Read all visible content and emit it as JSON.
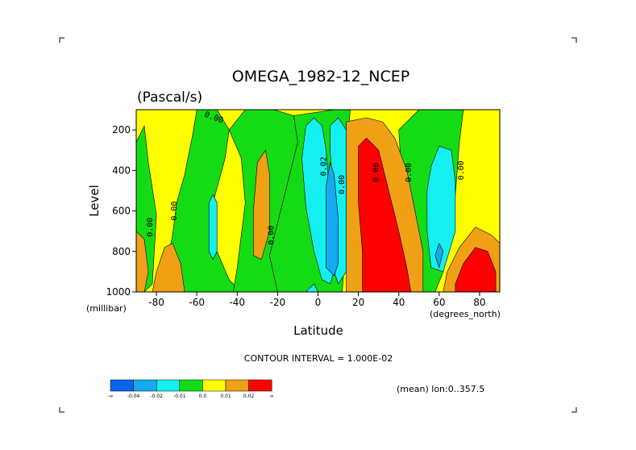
{
  "chart_data": {
    "type": "contour",
    "title": "OMEGA_1982-12_NCEP",
    "units": "(Pascal/s)",
    "xlabel": "Latitude",
    "ylabel": "Level",
    "x_unit_label": "(degrees_north)",
    "y_unit_label": "(millibar)",
    "xlim": [
      -90,
      90
    ],
    "ylim": [
      1000,
      100
    ],
    "x_ticks": [
      -80,
      -60,
      -40,
      -20,
      0,
      20,
      40,
      60,
      80
    ],
    "x_tick_labels": [
      "-80",
      "-60",
      "-40",
      "-20",
      "0",
      "20",
      "40",
      "60",
      "80"
    ],
    "y_ticks": [
      200,
      400,
      600,
      800,
      1000
    ],
    "y_tick_labels": [
      "200",
      "400",
      "600",
      "800",
      "1000"
    ],
    "contour_interval_text": "CONTOUR INTERVAL = 1.000E-02",
    "mean_text": "(mean) lon:0..357.5",
    "contour_labels": [
      {
        "text": "0.00",
        "lat": -52,
        "lev": 150,
        "rot": 20
      },
      {
        "text": "0.00",
        "lat": -82,
        "lev": 680,
        "rot": -90
      },
      {
        "text": "0.00",
        "lat": -70,
        "lev": 600,
        "rot": -90
      },
      {
        "text": "0.00",
        "lat": -22,
        "lev": 720,
        "rot": -90
      },
      {
        "text": "0.02",
        "lat": 4,
        "lev": 380,
        "rot": -90
      },
      {
        "text": "0.00",
        "lat": 13,
        "lev": 470,
        "rot": -90
      },
      {
        "text": "0.00",
        "lat": 30,
        "lev": 410,
        "rot": -90
      },
      {
        "text": "0.00",
        "lat": 46,
        "lev": 410,
        "rot": -90
      },
      {
        "text": "0.00",
        "lat": 72,
        "lev": 400,
        "rot": -90
      }
    ],
    "colorbar": {
      "colors": [
        "#0a64f0",
        "#14aaf0",
        "#14f0f0",
        "#14dc14",
        "#ffff00",
        "#f0a014",
        "#ff0000"
      ],
      "labels": [
        "-∞",
        "-0.04",
        "-0.02",
        "-0.01",
        "0.0",
        "0.01",
        "0.02",
        "∞"
      ]
    },
    "regions": [
      {
        "color": "#ffff00",
        "pts": [
          [
            -90,
            100
          ],
          [
            90,
            100
          ],
          [
            90,
            1000
          ],
          [
            -90,
            1000
          ]
        ]
      },
      {
        "color": "#14dc14",
        "pts": [
          [
            -90,
            260
          ],
          [
            -86,
            180
          ],
          [
            -84,
            360
          ],
          [
            -80,
            620
          ],
          [
            -82,
            960
          ],
          [
            -86,
            1000
          ],
          [
            -90,
            1000
          ]
        ]
      },
      {
        "color": "#14dc14",
        "pts": [
          [
            -78,
            1000
          ],
          [
            -72,
            720
          ],
          [
            -70,
            560
          ],
          [
            -66,
            420
          ],
          [
            -62,
            220
          ],
          [
            -60,
            100
          ],
          [
            -50,
            100
          ],
          [
            -44,
            200
          ],
          [
            -46,
            340
          ],
          [
            -52,
            560
          ],
          [
            -50,
            800
          ],
          [
            -44,
            940
          ],
          [
            -38,
            1000
          ]
        ]
      },
      {
        "color": "#14dc14",
        "pts": [
          [
            -44,
            200
          ],
          [
            -36,
            100
          ],
          [
            -22,
            100
          ],
          [
            -12,
            130
          ],
          [
            -10,
            260
          ],
          [
            -16,
            500
          ],
          [
            -24,
            820
          ],
          [
            -20,
            1000
          ],
          [
            -42,
            1000
          ],
          [
            -40,
            880
          ],
          [
            -36,
            560
          ],
          [
            -38,
            340
          ]
        ]
      },
      {
        "color": "#14dc14",
        "pts": [
          [
            -12,
            130
          ],
          [
            8,
            100
          ],
          [
            16,
            100
          ],
          [
            14,
            300
          ],
          [
            14,
            700
          ],
          [
            12,
            1000
          ],
          [
            -20,
            1000
          ],
          [
            -24,
            820
          ],
          [
            -16,
            500
          ],
          [
            -10,
            260
          ]
        ]
      },
      {
        "color": "#14dc14",
        "pts": [
          [
            40,
            200
          ],
          [
            50,
            100
          ],
          [
            72,
            100
          ],
          [
            70,
            260
          ],
          [
            68,
            520
          ],
          [
            64,
            760
          ],
          [
            62,
            900
          ],
          [
            58,
            1000
          ],
          [
            48,
            1000
          ],
          [
            46,
            760
          ],
          [
            42,
            520
          ]
        ]
      },
      {
        "color": "#f0a014",
        "pts": [
          [
            -90,
            700
          ],
          [
            -86,
            740
          ],
          [
            -84,
            900
          ],
          [
            -86,
            1000
          ],
          [
            -90,
            1000
          ]
        ]
      },
      {
        "color": "#f0a014",
        "pts": [
          [
            -82,
            1000
          ],
          [
            -80,
            900
          ],
          [
            -76,
            780
          ],
          [
            -72,
            760
          ],
          [
            -68,
            860
          ],
          [
            -66,
            1000
          ]
        ]
      },
      {
        "color": "#f0a014",
        "pts": [
          [
            -30,
            360
          ],
          [
            -26,
            300
          ],
          [
            -24,
            420
          ],
          [
            -24,
            700
          ],
          [
            -28,
            840
          ],
          [
            -32,
            820
          ],
          [
            -32,
            600
          ]
        ]
      },
      {
        "color": "#f0a014",
        "pts": [
          [
            14,
            160
          ],
          [
            24,
            140
          ],
          [
            32,
            160
          ],
          [
            38,
            240
          ],
          [
            44,
            400
          ],
          [
            48,
            600
          ],
          [
            52,
            800
          ],
          [
            52,
            1000
          ],
          [
            14,
            1000
          ],
          [
            14,
            700
          ],
          [
            14,
            400
          ]
        ]
      },
      {
        "color": "#f0a014",
        "pts": [
          [
            64,
            900
          ],
          [
            70,
            780
          ],
          [
            78,
            680
          ],
          [
            86,
            720
          ],
          [
            90,
            760
          ],
          [
            90,
            1000
          ],
          [
            62,
            1000
          ]
        ]
      },
      {
        "color": "#ff0000",
        "pts": [
          [
            20,
            280
          ],
          [
            24,
            240
          ],
          [
            30,
            300
          ],
          [
            34,
            460
          ],
          [
            40,
            700
          ],
          [
            44,
            880
          ],
          [
            46,
            1000
          ],
          [
            22,
            1000
          ],
          [
            22,
            800
          ],
          [
            20,
            560
          ]
        ]
      },
      {
        "color": "#ff0000",
        "pts": [
          [
            68,
            960
          ],
          [
            72,
            860
          ],
          [
            78,
            780
          ],
          [
            84,
            800
          ],
          [
            88,
            900
          ],
          [
            88,
            1000
          ],
          [
            68,
            1000
          ]
        ]
      },
      {
        "color": "#14f0f0",
        "pts": [
          [
            -54,
            560
          ],
          [
            -52,
            520
          ],
          [
            -50,
            560
          ],
          [
            -50,
            800
          ],
          [
            -52,
            840
          ],
          [
            -54,
            800
          ]
        ]
      },
      {
        "color": "#14f0f0",
        "pts": [
          [
            -6,
            180
          ],
          [
            -2,
            140
          ],
          [
            2,
            180
          ],
          [
            4,
            300
          ],
          [
            6,
            560
          ],
          [
            8,
            900
          ],
          [
            6,
            960
          ],
          [
            2,
            940
          ],
          [
            -2,
            800
          ],
          [
            -6,
            580
          ],
          [
            -8,
            340
          ]
        ]
      },
      {
        "color": "#14f0f0",
        "pts": [
          [
            6,
            180
          ],
          [
            10,
            140
          ],
          [
            14,
            200
          ],
          [
            14,
            600
          ],
          [
            14,
            900
          ],
          [
            10,
            960
          ],
          [
            8,
            900
          ],
          [
            8,
            560
          ],
          [
            6,
            300
          ]
        ]
      },
      {
        "color": "#14f0f0",
        "pts": [
          [
            -6,
            1000
          ],
          [
            -2,
            960
          ],
          [
            0,
            1000
          ]
        ]
      },
      {
        "color": "#14f0f0",
        "pts": [
          [
            56,
            380
          ],
          [
            60,
            280
          ],
          [
            66,
            300
          ],
          [
            68,
            460
          ],
          [
            68,
            700
          ],
          [
            62,
            900
          ],
          [
            56,
            880
          ],
          [
            54,
            700
          ],
          [
            54,
            500
          ]
        ]
      },
      {
        "color": "#14aaf0",
        "pts": [
          [
            4,
            480
          ],
          [
            6,
            360
          ],
          [
            8,
            420
          ],
          [
            10,
            640
          ],
          [
            10,
            860
          ],
          [
            8,
            920
          ],
          [
            4,
            880
          ],
          [
            4,
            680
          ]
        ]
      },
      {
        "color": "#14aaf0",
        "pts": [
          [
            58,
            820
          ],
          [
            60,
            760
          ],
          [
            62,
            800
          ],
          [
            60,
            880
          ]
        ]
      }
    ]
  }
}
